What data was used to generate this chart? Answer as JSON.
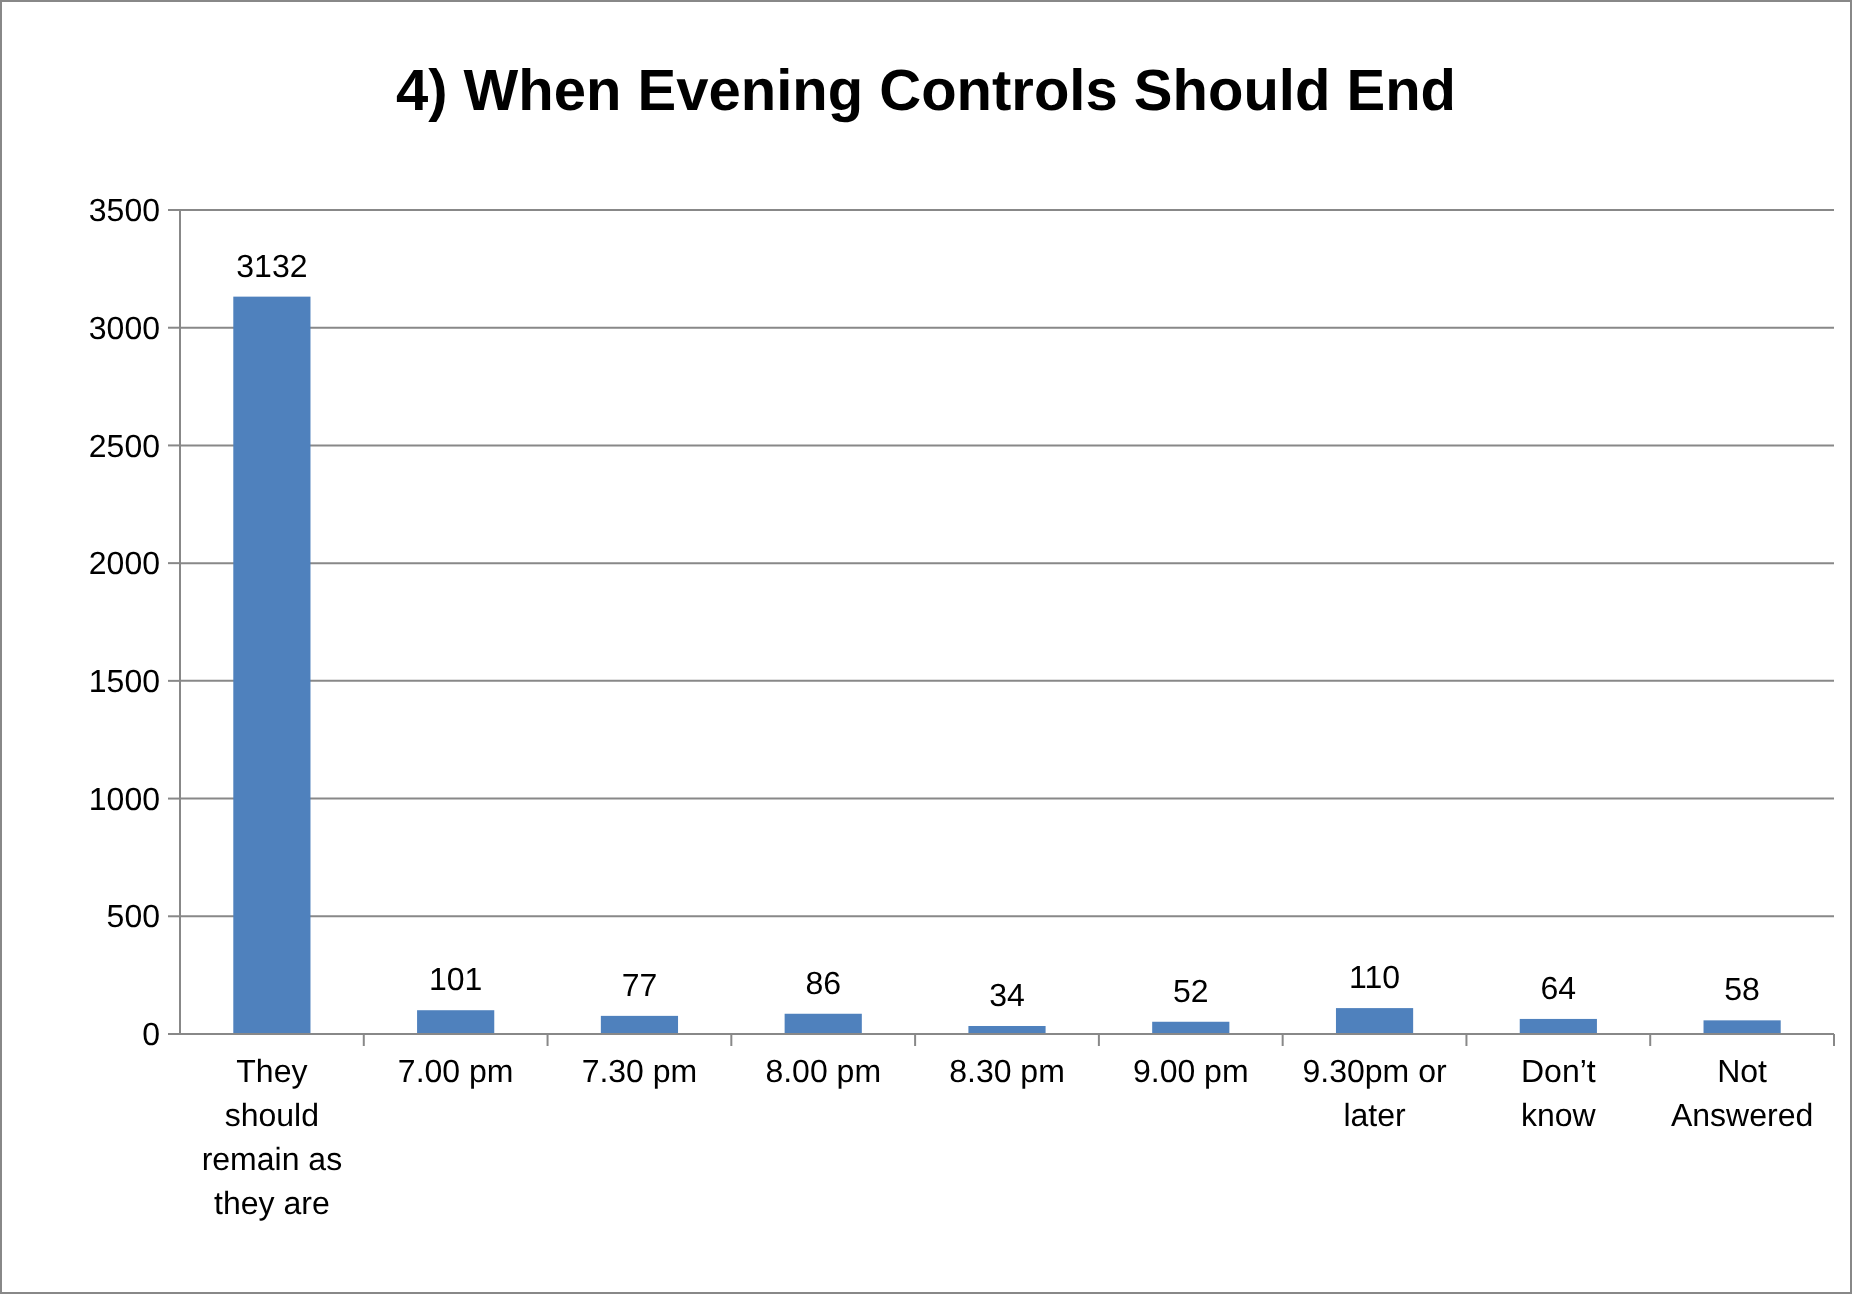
{
  "chart_data": {
    "type": "bar",
    "title": "4) When Evening Controls Should End",
    "categories": [
      "They should remain as they are",
      "7.00 pm",
      "7.30 pm",
      "8.00 pm",
      "8.30 pm",
      "9.00 pm",
      "9.30pm or later",
      "Don’t know",
      "Not Answered"
    ],
    "values": [
      3132,
      101,
      77,
      86,
      34,
      52,
      110,
      64,
      58
    ],
    "color": "#4f81bd",
    "ylim": [
      0,
      3500
    ],
    "yticks": [
      0,
      500,
      1000,
      1500,
      2000,
      2500,
      3000,
      3500
    ],
    "grid": "y",
    "data_labels": true
  }
}
